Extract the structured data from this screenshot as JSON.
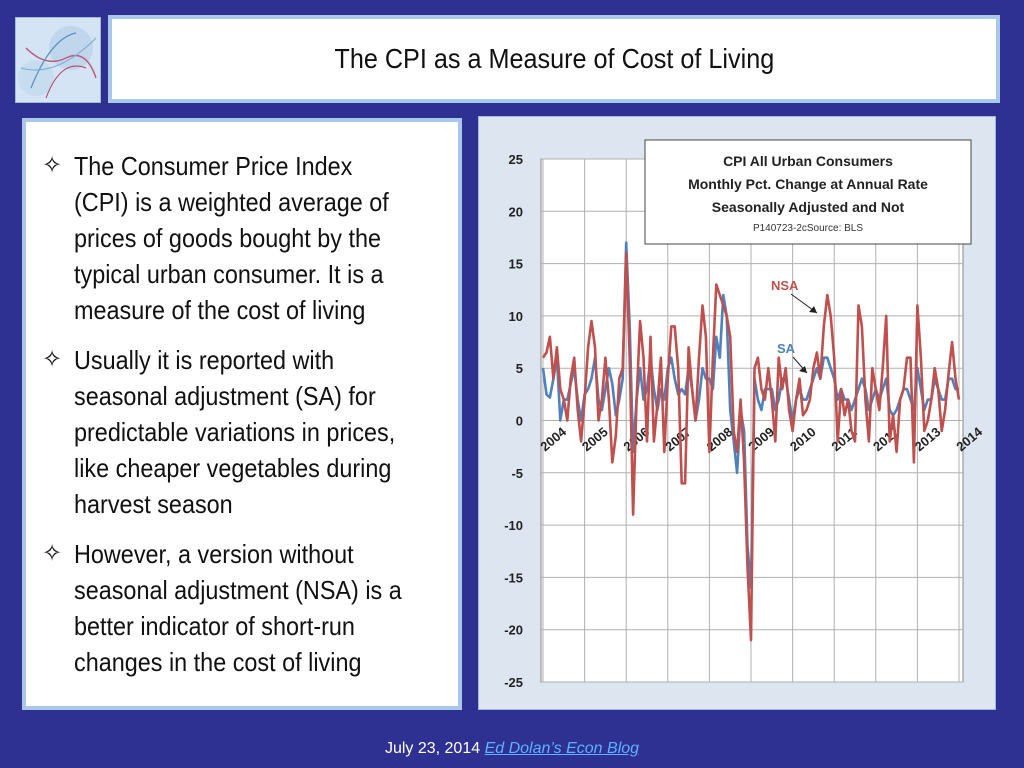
{
  "slide": {
    "title": "The CPI as a Measure of Cost of Living",
    "bullets": [
      {
        "icon": "four-point-star-outline-icon",
        "text": "The Consumer Price Index (CPI) is a weighted average of prices of goods bought by the typical urban consumer. It is a measure of the cost of living"
      },
      {
        "icon": "four-point-star-outline-icon",
        "text": "Usually it is reported with seasonal adjustment (SA) for predictable variations in prices, like cheaper vegetables during harvest season"
      },
      {
        "icon": "four-point-star-outline-icon",
        "text": "However, a version without seasonal adjustment (NSA) is a better indicator of short-run changes in the cost of living"
      }
    ],
    "footer_date": "July 23, 2014",
    "footer_link": "Ed Dolan’s Econ Blog"
  },
  "colors": {
    "background": "#2e3192",
    "nsa": "#c0504d",
    "sa": "#4f81bd",
    "link": "#5db2ff"
  },
  "chart_data": {
    "type": "line",
    "title": [
      "CPI All Urban Consumers",
      "Monthly Pct. Change at Annual Rate",
      "Seasonally Adjusted and Not"
    ],
    "subtitle": "P140723-2cSource: BLS",
    "ylim": [
      -25,
      25
    ],
    "yticks": [
      25,
      20,
      15,
      10,
      5,
      0,
      -5,
      -10,
      -15,
      -20,
      -25
    ],
    "grid": true,
    "x_start": "2004-01",
    "x_end": "2014-06",
    "year_labels": [
      "2004",
      "2005",
      "2006",
      "2007",
      "2008",
      "2009",
      "2010",
      "2011",
      "2012",
      "2013",
      "2014"
    ],
    "annotations": [
      {
        "label": "NSA",
        "series": "NSA"
      },
      {
        "label": "SA",
        "series": "SA"
      }
    ],
    "series": [
      {
        "name": "NSA",
        "color": "#c0504d",
        "values": [
          6,
          6.5,
          8,
          4,
          7,
          3,
          2,
          0,
          4,
          6,
          1,
          -2,
          2,
          7,
          9.5,
          7,
          0,
          2,
          6,
          2,
          -4,
          -1.5,
          4,
          5,
          16,
          6,
          -9,
          2,
          9.5,
          6,
          -2,
          8,
          -2,
          1.5,
          6,
          -3,
          4,
          9,
          9,
          5,
          -6,
          -6,
          7,
          3,
          0,
          6,
          11,
          8,
          -3,
          6,
          13,
          12,
          11,
          10,
          8,
          -1,
          -3,
          2,
          -4,
          -14,
          -21,
          5,
          6,
          3,
          2,
          5,
          2,
          -2,
          6,
          3,
          5,
          1,
          -1,
          2,
          4,
          0.5,
          1,
          2,
          5,
          6.5,
          4,
          9,
          12,
          10,
          6,
          -2,
          3,
          0.5,
          2,
          -1,
          -2,
          11,
          9,
          2,
          -2,
          5,
          3,
          1,
          5,
          10,
          -2,
          0.5,
          -3,
          2,
          3,
          6,
          6,
          -4,
          11,
          6,
          -1,
          0,
          2,
          5,
          3,
          -1,
          1,
          4.5,
          7.5,
          4,
          2
        ]
      },
      {
        "name": "SA",
        "color": "#4f81bd",
        "values": [
          5,
          2.5,
          2.2,
          4,
          6,
          0,
          2,
          2,
          3.5,
          5,
          2,
          0,
          2.5,
          3,
          4,
          6,
          2,
          1,
          3,
          5,
          3.5,
          0.5,
          2,
          4,
          17,
          9,
          -3,
          2,
          5,
          2,
          3,
          6,
          3,
          1,
          3,
          2,
          5,
          6,
          4,
          2.5,
          3,
          2.5,
          5,
          3,
          0,
          2,
          5,
          4,
          4,
          3,
          8,
          6,
          12,
          10,
          1,
          -2,
          -5,
          1,
          -1,
          -12,
          -16,
          4,
          2,
          1,
          3,
          3,
          3,
          1,
          2,
          4,
          4,
          2,
          0,
          2,
          3,
          2,
          2,
          3,
          4,
          5,
          4,
          6,
          6,
          5,
          4,
          2,
          3,
          2,
          2,
          1,
          2,
          3,
          4,
          3,
          1,
          2,
          3,
          2,
          3,
          4,
          1,
          0.5,
          1,
          2,
          3,
          3,
          2,
          1,
          5,
          3,
          1,
          2,
          2,
          4,
          3,
          2,
          2,
          4,
          4,
          3,
          3
        ]
      }
    ]
  }
}
